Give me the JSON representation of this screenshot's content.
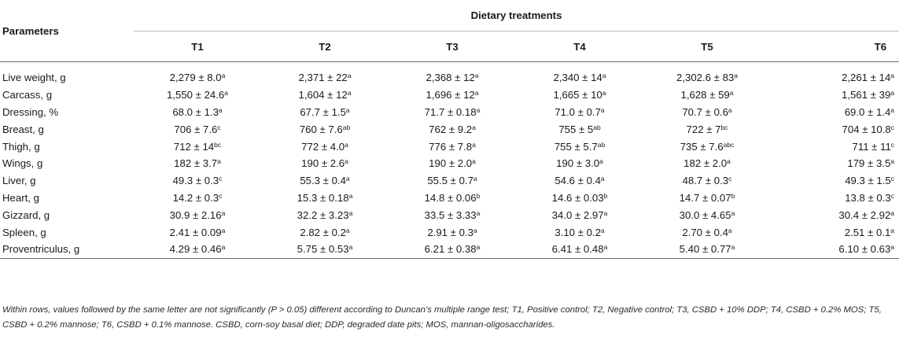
{
  "table": {
    "parameters_header": "Parameters",
    "group_header": "Dietary treatments",
    "treatments": [
      "T1",
      "T2",
      "T3",
      "T4",
      "T5",
      "T6"
    ],
    "rows": [
      {
        "label": "Live weight, g",
        "cells": [
          {
            "value": "2,279 ± 8.0",
            "sup": "a"
          },
          {
            "value": "2,371 ± 22",
            "sup": "a"
          },
          {
            "value": "2,368 ± 12",
            "sup": "a"
          },
          {
            "value": "2,340 ± 14",
            "sup": "a"
          },
          {
            "value": "2,302.6 ± 83",
            "sup": "a"
          },
          {
            "value": "2,261 ± 14",
            "sup": "a"
          }
        ]
      },
      {
        "label": "Carcass, g",
        "cells": [
          {
            "value": "1,550 ± 24.6",
            "sup": "a"
          },
          {
            "value": "1,604 ± 12",
            "sup": "a"
          },
          {
            "value": "1,696 ± 12",
            "sup": "a"
          },
          {
            "value": "1,665 ± 10",
            "sup": "a"
          },
          {
            "value": "1,628 ± 59",
            "sup": "a"
          },
          {
            "value": "1,561 ± 39",
            "sup": "a"
          }
        ]
      },
      {
        "label": "Dressing, %",
        "cells": [
          {
            "value": "68.0 ± 1.3",
            "sup": "a"
          },
          {
            "value": "67.7 ± 1.5",
            "sup": "a"
          },
          {
            "value": "71.7 ± 0.18",
            "sup": "a"
          },
          {
            "value": "71.0 ± 0.7",
            "sup": "a"
          },
          {
            "value": "70.7 ± 0.6",
            "sup": "a"
          },
          {
            "value": "69.0 ± 1.4",
            "sup": "a"
          }
        ]
      },
      {
        "label": "Breast, g",
        "cells": [
          {
            "value": "706 ± 7.6",
            "sup": "c"
          },
          {
            "value": "760 ± 7.6",
            "sup": "ab"
          },
          {
            "value": "762 ± 9.2",
            "sup": "a"
          },
          {
            "value": "755 ± 5",
            "sup": "ab"
          },
          {
            "value": "722 ± 7",
            "sup": "bc"
          },
          {
            "value": "704 ± 10.8",
            "sup": "c"
          }
        ]
      },
      {
        "label": "Thigh, g",
        "cells": [
          {
            "value": "712 ± 14",
            "sup": "bc"
          },
          {
            "value": "772 ± 4.0",
            "sup": "a"
          },
          {
            "value": "776 ± 7.8",
            "sup": "a"
          },
          {
            "value": "755 ± 5.7",
            "sup": "ab"
          },
          {
            "value": "735 ± 7.6",
            "sup": "abc"
          },
          {
            "value": "711 ± 11",
            "sup": "c"
          }
        ]
      },
      {
        "label": "Wings, g",
        "cells": [
          {
            "value": "182 ± 3.7",
            "sup": "a"
          },
          {
            "value": "190 ± 2.6",
            "sup": "a"
          },
          {
            "value": "190 ± 2.0",
            "sup": "a"
          },
          {
            "value": "190 ± 3.0",
            "sup": "a"
          },
          {
            "value": "182 ± 2.0",
            "sup": "a"
          },
          {
            "value": "179 ± 3.5",
            "sup": "a"
          }
        ]
      },
      {
        "label": "Liver, g",
        "cells": [
          {
            "value": "49.3 ± 0.3",
            "sup": "c"
          },
          {
            "value": "55.3 ± 0.4",
            "sup": "a"
          },
          {
            "value": "55.5 ± 0.7",
            "sup": "a"
          },
          {
            "value": "54.6 ± 0.4",
            "sup": "a"
          },
          {
            "value": "48.7 ± 0.3",
            "sup": "c"
          },
          {
            "value": "49.3 ± 1.5",
            "sup": "c"
          }
        ]
      },
      {
        "label": "Heart, g",
        "cells": [
          {
            "value": "14.2 ± 0.3",
            "sup": "c"
          },
          {
            "value": "15.3 ± 0.18",
            "sup": "a"
          },
          {
            "value": "14.8 ± 0.06",
            "sup": "b"
          },
          {
            "value": "14.6 ± 0.03",
            "sup": "b"
          },
          {
            "value": "14.7 ± 0.07",
            "sup": "b"
          },
          {
            "value": "13.8 ± 0.3",
            "sup": "c"
          }
        ]
      },
      {
        "label": "Gizzard, g",
        "cells": [
          {
            "value": "30.9 ± 2.16",
            "sup": "a"
          },
          {
            "value": "32.2 ± 3.23",
            "sup": "a"
          },
          {
            "value": "33.5 ± 3.33",
            "sup": "a"
          },
          {
            "value": "34.0 ± 2.97",
            "sup": "a"
          },
          {
            "value": "30.0 ± 4.65",
            "sup": "a"
          },
          {
            "value": "30.4 ± 2.92",
            "sup": "a"
          }
        ]
      },
      {
        "label": "Spleen, g",
        "cells": [
          {
            "value": "2.41 ± 0.09",
            "sup": "a"
          },
          {
            "value": "2.82 ± 0.2",
            "sup": "a"
          },
          {
            "value": "2.91 ± 0.3",
            "sup": "a"
          },
          {
            "value": "3.10 ± 0.2",
            "sup": "a"
          },
          {
            "value": "2.70 ± 0.4",
            "sup": "a"
          },
          {
            "value": "2.51 ± 0.1",
            "sup": "a"
          }
        ]
      },
      {
        "label": "Proventriculus, g",
        "cells": [
          {
            "value": "4.29 ± 0.46",
            "sup": "a"
          },
          {
            "value": "5.75 ± 0.53",
            "sup": "a"
          },
          {
            "value": "6.21 ± 0.38",
            "sup": "a"
          },
          {
            "value": "6.41 ± 0.48",
            "sup": "a"
          },
          {
            "value": "5.40 ± 0.77",
            "sup": "a"
          },
          {
            "value": "6.10 ± 0.63",
            "sup": "a"
          }
        ]
      }
    ]
  },
  "footnote": "Within rows, values followed by the same letter are not significantly (P > 0.05) different according to Duncan’s multiple range test; T1, Positive control; T2, Negative control; T3, CSBD + 10% DDP; T4, CSBD + 0.2% MOS; T5, CSBD + 0.2% mannose; T6, CSBD + 0.1% mannose. CSBD, corn-soy basal diet; DDP, degraded date pits; MOS, mannan-oligosaccharides."
}
